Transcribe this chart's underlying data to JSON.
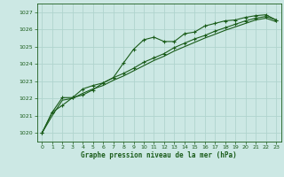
{
  "title": "Graphe pression niveau de la mer (hPa)",
  "bg_color": "#cce8e4",
  "grid_color": "#b0d4ce",
  "line_color": "#1a5c1a",
  "marker_color": "#1a5c1a",
  "xlim": [
    -0.5,
    23.5
  ],
  "ylim": [
    1019.5,
    1027.5
  ],
  "yticks": [
    1020,
    1021,
    1022,
    1023,
    1024,
    1025,
    1026,
    1027
  ],
  "xticks": [
    0,
    1,
    2,
    3,
    4,
    5,
    6,
    7,
    8,
    9,
    10,
    11,
    12,
    13,
    14,
    15,
    16,
    17,
    18,
    19,
    20,
    21,
    22,
    23
  ],
  "series": [
    {
      "x": [
        0,
        1,
        2,
        3,
        4,
        5,
        6,
        7,
        8,
        9,
        10,
        11,
        12,
        13,
        14,
        15,
        16,
        17,
        18,
        19,
        20,
        21,
        22,
        23
      ],
      "y": [
        1020.0,
        1021.2,
        1021.6,
        1022.05,
        1022.2,
        1022.5,
        1022.9,
        1023.2,
        1024.05,
        1024.85,
        1025.4,
        1025.55,
        1025.3,
        1025.3,
        1025.75,
        1025.85,
        1026.2,
        1026.35,
        1026.5,
        1026.55,
        1026.7,
        1026.8,
        1026.85,
        1026.55
      ],
      "has_markers": true
    },
    {
      "x": [
        0,
        1,
        2,
        3,
        4,
        5,
        6,
        7,
        8,
        9,
        10,
        11,
        12,
        13,
        14,
        15,
        16,
        17,
        18,
        19,
        20,
        21,
        22,
        23
      ],
      "y": [
        1020.0,
        1021.2,
        1022.05,
        1022.05,
        1022.55,
        1022.75,
        1022.9,
        1023.2,
        1023.45,
        1023.75,
        1024.1,
        1024.35,
        1024.6,
        1024.95,
        1025.2,
        1025.45,
        1025.65,
        1025.9,
        1026.1,
        1026.3,
        1026.5,
        1026.65,
        1026.75,
        1026.55
      ],
      "has_markers": true
    },
    {
      "x": [
        0,
        1,
        2,
        3,
        4,
        5,
        6,
        7,
        8,
        9,
        10,
        11,
        12,
        13,
        14,
        15,
        16,
        17,
        18,
        19,
        20,
        21,
        22,
        23
      ],
      "y": [
        1020.0,
        1021.0,
        1021.9,
        1022.0,
        1022.3,
        1022.55,
        1022.75,
        1023.05,
        1023.3,
        1023.6,
        1023.9,
        1024.2,
        1024.45,
        1024.75,
        1025.0,
        1025.25,
        1025.5,
        1025.72,
        1025.95,
        1026.15,
        1026.35,
        1026.55,
        1026.65,
        1026.45
      ],
      "has_markers": false
    }
  ]
}
